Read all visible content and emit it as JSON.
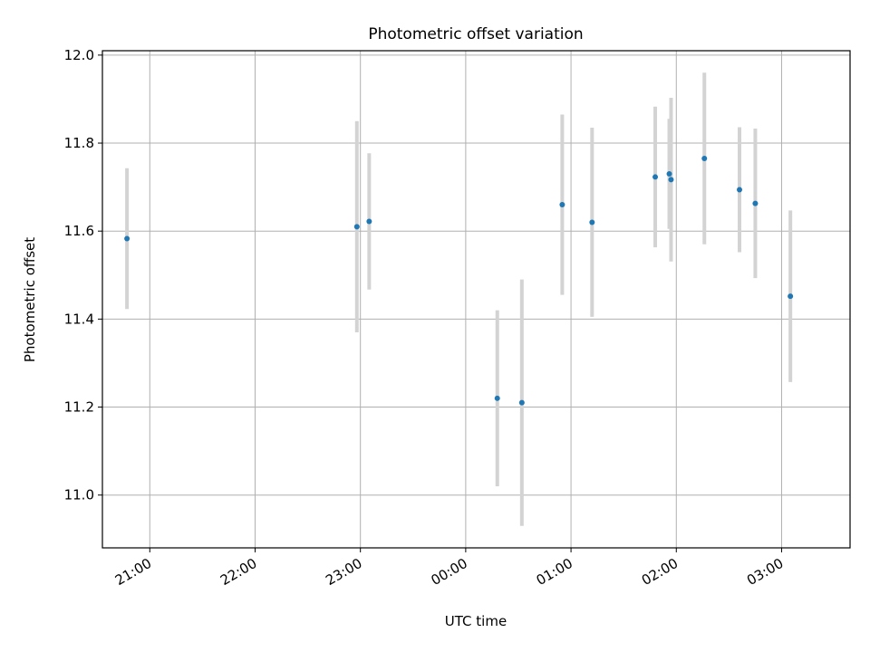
{
  "chart_data": {
    "type": "scatter",
    "title": "Photometric offset variation",
    "xlabel": "UTC time",
    "ylabel": "Photometric offset",
    "x_ticks": [
      "21:00",
      "22:00",
      "23:00",
      "00:00",
      "01:00",
      "02:00",
      "03:00"
    ],
    "y_ticks": [
      "11.0",
      "11.2",
      "11.4",
      "11.6",
      "11.8",
      "12.0"
    ],
    "xlim": [
      "20:33",
      "03:39"
    ],
    "ylim": [
      10.88,
      12.01
    ],
    "grid": true,
    "point_color": "#1f77b4",
    "errorbar_color": "#d3d3d3",
    "points": [
      {
        "x": "20:47",
        "y": 11.583,
        "err": 0.16
      },
      {
        "x": "22:58",
        "y": 11.61,
        "err": 0.24
      },
      {
        "x": "23:05",
        "y": 11.622,
        "err": 0.155
      },
      {
        "x": "00:18",
        "y": 11.22,
        "err": 0.2
      },
      {
        "x": "00:32",
        "y": 11.21,
        "err": 0.28
      },
      {
        "x": "00:55",
        "y": 11.66,
        "err": 0.205
      },
      {
        "x": "01:12",
        "y": 11.62,
        "err": 0.215
      },
      {
        "x": "01:48",
        "y": 11.723,
        "err": 0.16
      },
      {
        "x": "01:56",
        "y": 11.73,
        "err": 0.125
      },
      {
        "x": "01:57",
        "y": 11.717,
        "err": 0.186
      },
      {
        "x": "02:16",
        "y": 11.765,
        "err": 0.195
      },
      {
        "x": "02:36",
        "y": 11.694,
        "err": 0.142
      },
      {
        "x": "02:45",
        "y": 11.663,
        "err": 0.17
      },
      {
        "x": "03:05",
        "y": 11.452,
        "err": 0.195
      }
    ]
  }
}
